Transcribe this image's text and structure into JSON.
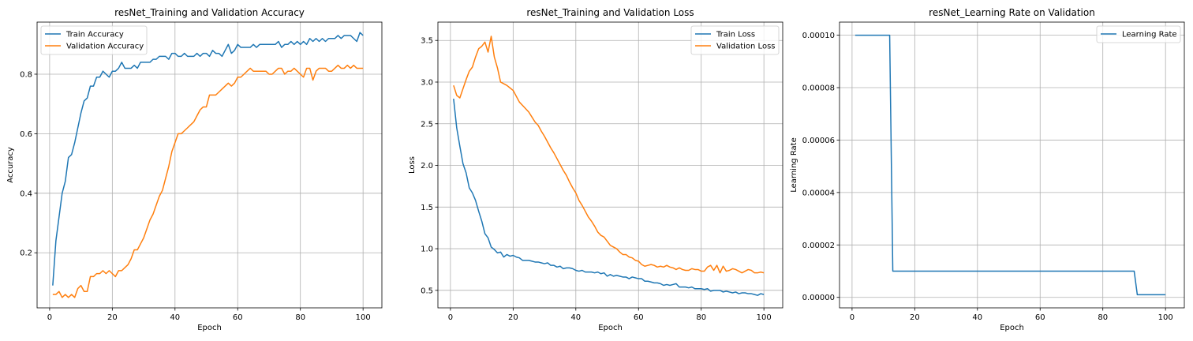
{
  "chart_data": [
    {
      "type": "line",
      "title": "resNet_Training and Validation Accuracy",
      "xlabel": "Epoch",
      "ylabel": "Accuracy",
      "xlim": [
        -4,
        106
      ],
      "ylim": [
        0.015,
        0.975
      ],
      "xticks": [
        0,
        20,
        40,
        60,
        80,
        100
      ],
      "yticks": [
        0.2,
        0.4,
        0.6,
        0.8
      ],
      "ytick_labels": [
        "0.2",
        "0.4",
        "0.6",
        "0.8"
      ],
      "grid": true,
      "legend_position": "upper left",
      "series": [
        {
          "name": "Train Accuracy",
          "color": "#1f77b4",
          "x": [
            1,
            2,
            3,
            4,
            5,
            6,
            7,
            8,
            9,
            10,
            11,
            12,
            13,
            14,
            15,
            16,
            17,
            18,
            19,
            20,
            21,
            22,
            23,
            24,
            25,
            26,
            27,
            28,
            29,
            30,
            31,
            32,
            33,
            34,
            35,
            36,
            37,
            38,
            39,
            40,
            41,
            42,
            43,
            44,
            45,
            46,
            47,
            48,
            49,
            50,
            51,
            52,
            53,
            54,
            55,
            56,
            57,
            58,
            59,
            60,
            61,
            62,
            63,
            64,
            65,
            66,
            67,
            68,
            69,
            70,
            71,
            72,
            73,
            74,
            75,
            76,
            77,
            78,
            79,
            80,
            81,
            82,
            83,
            84,
            85,
            86,
            87,
            88,
            89,
            90,
            91,
            92,
            93,
            94,
            95,
            96,
            97,
            98,
            99,
            100
          ],
          "y": [
            0.09,
            0.24,
            0.32,
            0.4,
            0.44,
            0.52,
            0.53,
            0.57,
            0.62,
            0.67,
            0.71,
            0.72,
            0.76,
            0.76,
            0.79,
            0.79,
            0.81,
            0.8,
            0.79,
            0.81,
            0.81,
            0.82,
            0.84,
            0.82,
            0.82,
            0.82,
            0.83,
            0.82,
            0.84,
            0.84,
            0.84,
            0.84,
            0.85,
            0.85,
            0.86,
            0.86,
            0.86,
            0.85,
            0.87,
            0.87,
            0.86,
            0.86,
            0.87,
            0.86,
            0.86,
            0.86,
            0.87,
            0.86,
            0.87,
            0.87,
            0.86,
            0.88,
            0.87,
            0.87,
            0.86,
            0.88,
            0.9,
            0.87,
            0.88,
            0.9,
            0.89,
            0.89,
            0.89,
            0.89,
            0.9,
            0.89,
            0.9,
            0.9,
            0.9,
            0.9,
            0.9,
            0.9,
            0.91,
            0.89,
            0.9,
            0.9,
            0.91,
            0.9,
            0.91,
            0.9,
            0.91,
            0.9,
            0.92,
            0.91,
            0.92,
            0.91,
            0.92,
            0.91,
            0.92,
            0.92,
            0.92,
            0.93,
            0.92,
            0.93,
            0.93,
            0.93,
            0.92,
            0.91,
            0.94,
            0.93
          ]
        },
        {
          "name": "Validation Accuracy",
          "color": "#ff7f0e",
          "x": [
            1,
            2,
            3,
            4,
            5,
            6,
            7,
            8,
            9,
            10,
            11,
            12,
            13,
            14,
            15,
            16,
            17,
            18,
            19,
            20,
            21,
            22,
            23,
            24,
            25,
            26,
            27,
            28,
            29,
            30,
            31,
            32,
            33,
            34,
            35,
            36,
            37,
            38,
            39,
            40,
            41,
            42,
            43,
            44,
            45,
            46,
            47,
            48,
            49,
            50,
            51,
            52,
            53,
            54,
            55,
            56,
            57,
            58,
            59,
            60,
            61,
            62,
            63,
            64,
            65,
            66,
            67,
            68,
            69,
            70,
            71,
            72,
            73,
            74,
            75,
            76,
            77,
            78,
            79,
            80,
            81,
            82,
            83,
            84,
            85,
            86,
            87,
            88,
            89,
            90,
            91,
            92,
            93,
            94,
            95,
            96,
            97,
            98,
            99,
            100
          ],
          "y": [
            0.06,
            0.06,
            0.07,
            0.05,
            0.06,
            0.05,
            0.06,
            0.05,
            0.08,
            0.09,
            0.07,
            0.07,
            0.12,
            0.12,
            0.13,
            0.13,
            0.14,
            0.13,
            0.14,
            0.13,
            0.12,
            0.14,
            0.14,
            0.15,
            0.16,
            0.18,
            0.21,
            0.21,
            0.23,
            0.25,
            0.28,
            0.31,
            0.33,
            0.36,
            0.39,
            0.41,
            0.45,
            0.49,
            0.54,
            0.57,
            0.6,
            0.6,
            0.61,
            0.62,
            0.63,
            0.64,
            0.66,
            0.68,
            0.69,
            0.69,
            0.73,
            0.73,
            0.73,
            0.74,
            0.75,
            0.76,
            0.77,
            0.76,
            0.77,
            0.79,
            0.79,
            0.8,
            0.81,
            0.82,
            0.81,
            0.81,
            0.81,
            0.81,
            0.81,
            0.8,
            0.8,
            0.81,
            0.82,
            0.82,
            0.8,
            0.81,
            0.81,
            0.82,
            0.81,
            0.8,
            0.79,
            0.82,
            0.82,
            0.78,
            0.81,
            0.82,
            0.82,
            0.82,
            0.81,
            0.81,
            0.82,
            0.83,
            0.82,
            0.82,
            0.83,
            0.82,
            0.83,
            0.82,
            0.82,
            0.82
          ]
        }
      ]
    },
    {
      "type": "line",
      "title": "resNet_Training and Validation Loss",
      "xlabel": "Epoch",
      "ylabel": "Loss",
      "xlim": [
        -4,
        106
      ],
      "ylim": [
        0.29,
        3.72
      ],
      "xticks": [
        0,
        20,
        40,
        60,
        80,
        100
      ],
      "yticks": [
        0.5,
        1.0,
        1.5,
        2.0,
        2.5,
        3.0,
        3.5
      ],
      "ytick_labels": [
        "0.5",
        "1.0",
        "1.5",
        "2.0",
        "2.5",
        "3.0",
        "3.5"
      ],
      "grid": true,
      "legend_position": "upper right",
      "series": [
        {
          "name": "Train Loss",
          "color": "#1f77b4",
          "x": [
            1,
            2,
            3,
            4,
            5,
            6,
            7,
            8,
            9,
            10,
            11,
            12,
            13,
            14,
            15,
            16,
            17,
            18,
            19,
            20,
            21,
            22,
            23,
            24,
            25,
            26,
            27,
            28,
            29,
            30,
            31,
            32,
            33,
            34,
            35,
            36,
            37,
            38,
            39,
            40,
            41,
            42,
            43,
            44,
            45,
            46,
            47,
            48,
            49,
            50,
            51,
            52,
            53,
            54,
            55,
            56,
            57,
            58,
            59,
            60,
            61,
            62,
            63,
            64,
            65,
            66,
            67,
            68,
            69,
            70,
            71,
            72,
            73,
            74,
            75,
            76,
            77,
            78,
            79,
            80,
            81,
            82,
            83,
            84,
            85,
            86,
            87,
            88,
            89,
            90,
            91,
            92,
            93,
            94,
            95,
            96,
            97,
            98,
            99,
            100
          ],
          "y": [
            2.8,
            2.45,
            2.23,
            2.02,
            1.91,
            1.73,
            1.67,
            1.58,
            1.45,
            1.33,
            1.18,
            1.13,
            1.02,
            0.99,
            0.95,
            0.96,
            0.9,
            0.93,
            0.91,
            0.92,
            0.9,
            0.89,
            0.86,
            0.86,
            0.86,
            0.85,
            0.84,
            0.84,
            0.83,
            0.82,
            0.83,
            0.8,
            0.8,
            0.78,
            0.79,
            0.76,
            0.77,
            0.77,
            0.76,
            0.74,
            0.73,
            0.74,
            0.72,
            0.72,
            0.72,
            0.71,
            0.72,
            0.7,
            0.71,
            0.67,
            0.69,
            0.67,
            0.68,
            0.67,
            0.66,
            0.66,
            0.64,
            0.66,
            0.65,
            0.64,
            0.64,
            0.61,
            0.61,
            0.6,
            0.59,
            0.59,
            0.58,
            0.56,
            0.57,
            0.56,
            0.57,
            0.58,
            0.54,
            0.54,
            0.54,
            0.53,
            0.54,
            0.52,
            0.52,
            0.52,
            0.51,
            0.52,
            0.49,
            0.5,
            0.5,
            0.5,
            0.48,
            0.49,
            0.48,
            0.47,
            0.48,
            0.46,
            0.47,
            0.47,
            0.46,
            0.46,
            0.45,
            0.44,
            0.46,
            0.45
          ]
        },
        {
          "name": "Validation Loss",
          "color": "#ff7f0e",
          "x": [
            1,
            2,
            3,
            4,
            5,
            6,
            7,
            8,
            9,
            10,
            11,
            12,
            13,
            14,
            15,
            16,
            17,
            18,
            19,
            20,
            21,
            22,
            23,
            24,
            25,
            26,
            27,
            28,
            29,
            30,
            31,
            32,
            33,
            34,
            35,
            36,
            37,
            38,
            39,
            40,
            41,
            42,
            43,
            44,
            45,
            46,
            47,
            48,
            49,
            50,
            51,
            52,
            53,
            54,
            55,
            56,
            57,
            58,
            59,
            60,
            61,
            62,
            63,
            64,
            65,
            66,
            67,
            68,
            69,
            70,
            71,
            72,
            73,
            74,
            75,
            76,
            77,
            78,
            79,
            80,
            81,
            82,
            83,
            84,
            85,
            86,
            87,
            88,
            89,
            90,
            91,
            92,
            93,
            94,
            95,
            96,
            97,
            98,
            99,
            100
          ],
          "y": [
            2.96,
            2.84,
            2.81,
            2.92,
            3.03,
            3.13,
            3.18,
            3.3,
            3.4,
            3.43,
            3.48,
            3.36,
            3.55,
            3.3,
            3.17,
            3.0,
            2.98,
            2.96,
            2.93,
            2.9,
            2.83,
            2.76,
            2.72,
            2.68,
            2.64,
            2.58,
            2.52,
            2.48,
            2.41,
            2.35,
            2.28,
            2.21,
            2.15,
            2.08,
            2.01,
            1.94,
            1.88,
            1.8,
            1.73,
            1.67,
            1.58,
            1.52,
            1.45,
            1.38,
            1.33,
            1.27,
            1.2,
            1.16,
            1.14,
            1.09,
            1.04,
            1.02,
            1.0,
            0.96,
            0.93,
            0.93,
            0.9,
            0.89,
            0.86,
            0.85,
            0.81,
            0.79,
            0.8,
            0.81,
            0.8,
            0.78,
            0.79,
            0.78,
            0.8,
            0.78,
            0.77,
            0.75,
            0.77,
            0.75,
            0.74,
            0.74,
            0.76,
            0.75,
            0.75,
            0.73,
            0.73,
            0.78,
            0.8,
            0.74,
            0.8,
            0.71,
            0.79,
            0.73,
            0.74,
            0.76,
            0.75,
            0.73,
            0.71,
            0.73,
            0.75,
            0.74,
            0.71,
            0.71,
            0.72,
            0.71
          ]
        }
      ]
    },
    {
      "type": "line",
      "title": "resNet_Learning Rate on Validation",
      "xlabel": "Epoch",
      "ylabel": "Learning Rate",
      "xlim": [
        -4,
        106
      ],
      "ylim": [
        -4e-06,
        0.000105
      ],
      "xticks": [
        0,
        20,
        40,
        60,
        80,
        100
      ],
      "yticks": [
        0,
        2e-05,
        4e-05,
        6e-05,
        8e-05,
        0.0001
      ],
      "ytick_labels": [
        "0.00000",
        "0.00002",
        "0.00004",
        "0.00006",
        "0.00008",
        "0.00010"
      ],
      "grid": true,
      "legend_position": "upper right",
      "series": [
        {
          "name": "Learning Rate",
          "color": "#1f77b4",
          "x": [
            1,
            12,
            13,
            90,
            91,
            100
          ],
          "y": [
            0.0001,
            0.0001,
            1e-05,
            1e-05,
            1e-06,
            1e-06
          ]
        }
      ]
    }
  ]
}
